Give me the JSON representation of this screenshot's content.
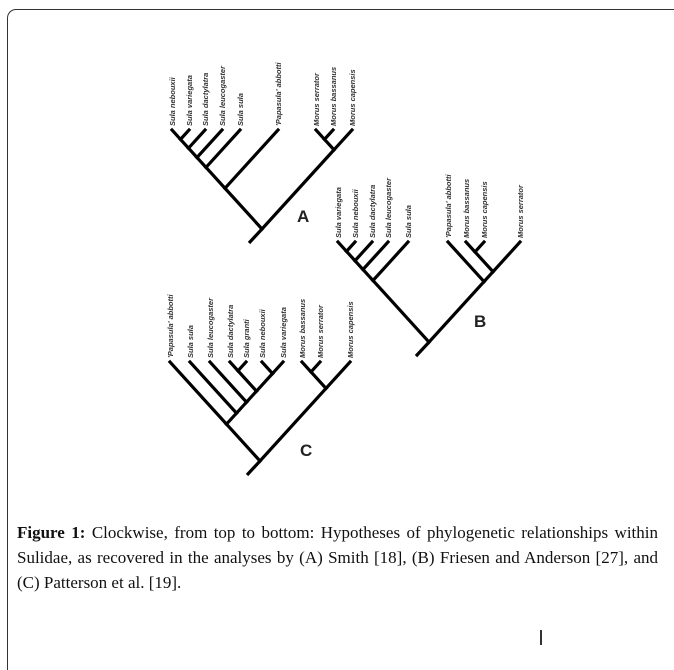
{
  "figure": {
    "trees": [
      {
        "panel": "A",
        "labels": [
          "Sula nebouxii",
          "Sula variegata",
          "Sula dactylatra",
          "Sula leucogaster",
          "Sula sula",
          "'Papasula' abbotti",
          "Morus serrator",
          "Morus bassanus",
          "Morus capensis"
        ]
      },
      {
        "panel": "B",
        "labels": [
          "Sula variegata",
          "Sula nebouxii",
          "Sula dactylatra",
          "Sula leucogaster",
          "Sula sula",
          "'Papasula' abbotti",
          "Morus bassanus",
          "Morus capensis",
          "Morus serrator"
        ]
      },
      {
        "panel": "C",
        "labels": [
          "'Papasula' abbotti",
          "Sula sula",
          "Sula leucogaster",
          "Sula dactylatra",
          "Sula granti",
          "Sula nebouxii",
          "Sula variegata",
          "Morus bassanus",
          "Morus serrator",
          "Morus capensis"
        ]
      }
    ]
  },
  "caption": {
    "label": "Figure 1:",
    "text": "Clockwise, from top to bottom: Hypotheses of phylogenetic relationships within Sulidae, as recovered in the analyses by (A) Smith [18], (B) Friesen and Anderson [27], and (C) Patterson et al. [19]."
  }
}
